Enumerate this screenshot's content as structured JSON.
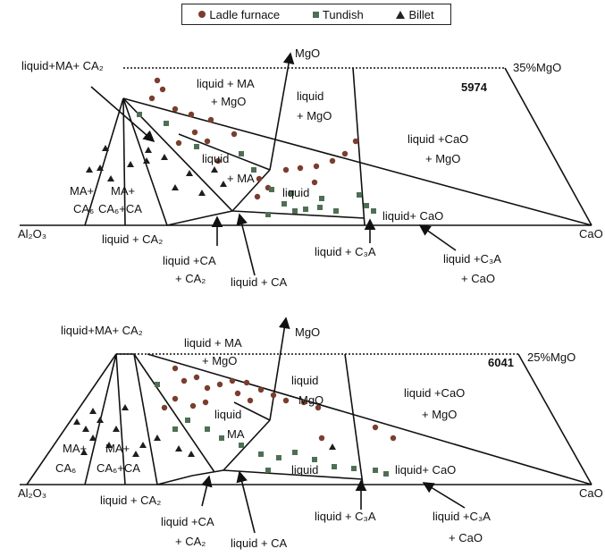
{
  "legend": {
    "ladle": "Ladle furnace",
    "tundish": "Tundish",
    "billet": "Billet"
  },
  "colors": {
    "ladle": "#7a3d2e",
    "tundish": "#4f6f55",
    "billet": "#1d1d1d"
  },
  "diagrams": [
    {
      "sample": "5974",
      "mgo_level": "35%MgO",
      "labels": {
        "al2o3": "Al₂O₃",
        "cao": "CaO",
        "mgo": "MgO",
        "liq_ma_ca2": "liquid+MA+ CA₂",
        "liq_ma_mgo_1": "liquid + MA",
        "liq_ma_mgo_2": "+ MgO",
        "liq_mgo_1": "liquid",
        "liq_mgo_2": "+ MgO",
        "liq_cao_mgo_1": "liquid +CaO",
        "liq_cao_mgo_2": "+ MgO",
        "liq_ma_1": "liquid",
        "liq_ma_2": "+ MA",
        "liq": "liquid",
        "liq_cao": "liquid+ CaO",
        "ma_ca6_1": "MA+",
        "ma_ca6_2": "CA₆",
        "ma_ca6_ca_1": "MA+",
        "ma_ca6_ca_2": "CA₆+CA",
        "liq_ca2": "liquid + CA₂",
        "liq_ca_ca2_1": "liquid +CA",
        "liq_ca_ca2_2": "+ CA₂",
        "liq_ca": "liquid + CA",
        "liq_c3a": "liquid + C₃A",
        "liq_c3a_cao_1": "liquid +C₃A",
        "liq_c3a_cao_2": "+ CaO"
      }
    },
    {
      "sample": "6041",
      "mgo_level": "25%MgO",
      "labels": {
        "al2o3": "Al₂O₃",
        "cao": "CaO",
        "mgo": "MgO",
        "liq_ma_ca2": "liquid+MA+ CA₂",
        "liq_ma_mgo_1": "liquid + MA",
        "liq_ma_mgo_2": "+ MgO",
        "liq_mgo_1": "liquid",
        "liq_mgo_2": "MgO",
        "liq_cao_mgo_1": "liquid +CaO",
        "liq_cao_mgo_2": "+ MgO",
        "liq_ma_1": "liquid",
        "liq_ma_2": "MA",
        "liq": "liquid",
        "liq_cao": "liquid+ CaO",
        "ma_ca6_1": "MA+",
        "ma_ca6_2": "CA₆",
        "ma_ca6_ca_1": "MA+",
        "ma_ca6_ca_2": "CA₆+CA",
        "liq_ca2": "liquid + CA₂",
        "liq_ca_ca2_1": "liquid +CA",
        "liq_ca_ca2_2": "+ CA₂",
        "liq_ca": "liquid + CA",
        "liq_c3a": "liquid + C₃A",
        "liq_c3a_cao_1": "liquid +C₃A",
        "liq_c3a_cao_2": "+ CaO"
      }
    }
  ]
}
